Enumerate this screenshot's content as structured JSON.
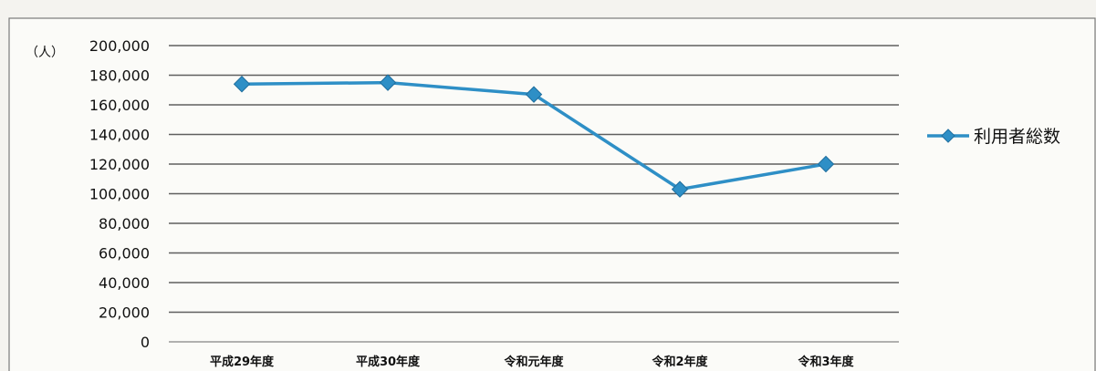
{
  "chart_data": {
    "type": "line",
    "y_unit": "（人）",
    "categories": [
      "平成29年度",
      "平成30年度",
      "令和元年度",
      "令和2年度",
      "令和3年度"
    ],
    "series": [
      {
        "name": "利用者総数",
        "values": [
          174000,
          175000,
          167000,
          103000,
          120000
        ]
      }
    ],
    "yticks": [
      "200,000",
      "180,000",
      "160,000",
      "140,000",
      "120,000",
      "100,000",
      "80,000",
      "60,000",
      "40,000",
      "20,000",
      "0"
    ],
    "ylim": [
      0,
      200000
    ],
    "ytick_step": 20000,
    "grid": true,
    "legend_position": "right",
    "colors": {
      "series": "#2e8fc6"
    }
  }
}
